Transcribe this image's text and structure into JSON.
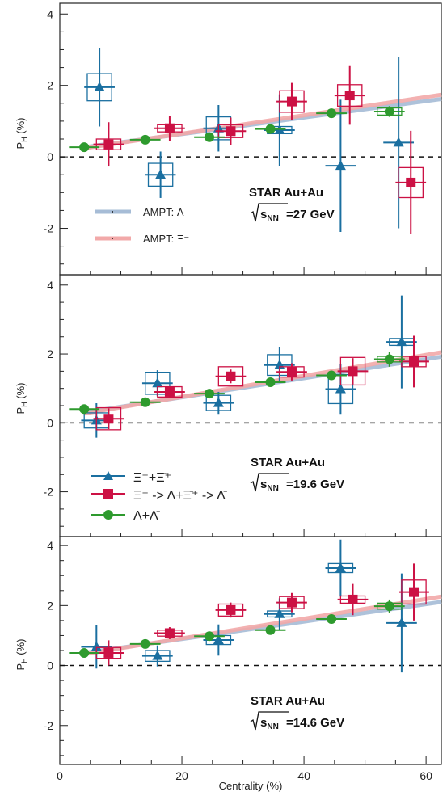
{
  "colors": {
    "xi": "#1a6fa0",
    "lambda_from_xi": "#cc1144",
    "lambda": "#2e9a2e",
    "ampt_lambda": "#a6bcd6",
    "ampt_xi": "#f2a9a9"
  },
  "chart_data": [
    {
      "type": "scatter",
      "panel": "top",
      "xlim": [
        0,
        62.5
      ],
      "ylim": [
        -3.3,
        4.3
      ],
      "yticks": [
        -2,
        0,
        2,
        4
      ],
      "ylabel": "P_H (%)",
      "annotation": {
        "line1": "STAR Au+Au",
        "energy_value": "=27 GeV"
      },
      "legend": {
        "entries": [
          "AMPT: Λ",
          "AMPT: Ξ⁻"
        ],
        "placement": "left"
      },
      "ampt": [
        {
          "name": "AMPT: Λ",
          "x": [
            4,
            62.5
          ],
          "y": [
            0.27,
            1.62
          ]
        },
        {
          "name": "AMPT: Ξ⁻",
          "x": [
            4,
            62.5
          ],
          "y": [
            0.24,
            1.74
          ]
        }
      ],
      "series": [
        {
          "key": "xi",
          "x": [
            6.5,
            16.5,
            26,
            36,
            46,
            55.5
          ],
          "y": [
            1.95,
            -0.5,
            0.8,
            0.75,
            -0.25,
            0.4
          ],
          "err": [
            1.1,
            0.65,
            0.65,
            1.0,
            1.85,
            2.4
          ],
          "xerr": [
            2.5,
            2.5,
            2.5,
            2.5,
            2.5,
            2.5
          ],
          "sys": [
            0.38,
            0.32,
            0.32,
            0.1,
            0.0,
            0.0
          ]
        },
        {
          "key": "lambda_from_xi",
          "x": [
            8,
            18,
            28,
            38,
            47.5,
            57.5
          ],
          "y": [
            0.35,
            0.8,
            0.72,
            1.55,
            1.72,
            -0.72
          ],
          "err": [
            0.62,
            0.35,
            0.38,
            0.52,
            0.82,
            1.45
          ],
          "xerr": [
            2.5,
            2.5,
            2.5,
            2.5,
            2.5,
            2.5
          ],
          "sys": [
            0.15,
            0.1,
            0.18,
            0.3,
            0.3,
            0.42
          ]
        },
        {
          "key": "lambda",
          "x": [
            4,
            14,
            24.5,
            34.5,
            44.5,
            54
          ],
          "y": [
            0.27,
            0.48,
            0.55,
            0.78,
            1.22,
            1.27
          ],
          "err": [
            0.05,
            0.05,
            0.07,
            0.08,
            0.1,
            0.15
          ],
          "xerr": [
            2.5,
            2.5,
            2.5,
            2.5,
            2.5,
            2.5
          ],
          "sys": [
            0.0,
            0.0,
            0.0,
            0.0,
            0.0,
            0.1
          ]
        }
      ]
    },
    {
      "type": "scatter",
      "panel": "middle",
      "xlim": [
        0,
        62.5
      ],
      "ylim": [
        -3.3,
        4.3
      ],
      "yticks": [
        -2,
        0,
        2,
        4
      ],
      "ylabel": "P_H (%)",
      "annotation": {
        "line1": "STAR Au+Au",
        "energy_value": "=19.6 GeV"
      },
      "legend": {
        "entries": [
          "Ξ⁻+Ξ̄⁺",
          "Ξ⁻ -> Λ+Ξ̄⁺ -> Λ̄",
          "Λ+Λ̄"
        ],
        "placement": "left"
      },
      "ampt": [
        {
          "name": "AMPT: Λ",
          "x": [
            4,
            62.5
          ],
          "y": [
            0.3,
            1.92
          ]
        },
        {
          "name": "AMPT: Ξ⁻",
          "x": [
            4,
            62.5
          ],
          "y": [
            0.27,
            2.05
          ]
        }
      ],
      "series": [
        {
          "key": "xi",
          "x": [
            6,
            16,
            26,
            36,
            46,
            56
          ],
          "y": [
            0.07,
            1.15,
            0.58,
            1.68,
            0.98,
            2.35
          ],
          "err": [
            0.5,
            0.38,
            0.32,
            0.52,
            0.72,
            1.35
          ],
          "xerr": [
            2.5,
            2.5,
            2.5,
            2.5,
            2.5,
            2.5
          ],
          "sys": [
            0.22,
            0.32,
            0.22,
            0.3,
            0.42,
            0.1
          ]
        },
        {
          "key": "lambda_from_xi",
          "x": [
            8,
            18,
            28,
            38,
            48,
            58
          ],
          "y": [
            0.12,
            0.9,
            1.35,
            1.48,
            1.5,
            1.78
          ],
          "err": [
            0.3,
            0.15,
            0.2,
            0.25,
            0.38,
            0.75
          ],
          "xerr": [
            2.5,
            2.5,
            2.5,
            2.5,
            2.5,
            2.5
          ],
          "sys": [
            0.32,
            0.15,
            0.28,
            0.15,
            0.4,
            0.15
          ]
        },
        {
          "key": "lambda",
          "x": [
            4,
            14,
            24.5,
            34.5,
            44.5,
            54
          ],
          "y": [
            0.4,
            0.6,
            0.85,
            1.18,
            1.38,
            1.85
          ],
          "err": [
            0.06,
            0.06,
            0.07,
            0.09,
            0.12,
            0.22
          ],
          "xerr": [
            2.5,
            2.5,
            2.5,
            2.5,
            2.5,
            2.5
          ],
          "sys": [
            0.0,
            0.0,
            0.0,
            0.0,
            0.0,
            0.08
          ]
        }
      ]
    },
    {
      "type": "scatter",
      "panel": "bottom",
      "xlim": [
        0,
        62.5
      ],
      "ylim": [
        -3.3,
        4.3
      ],
      "yticks": [
        -2,
        0,
        2,
        4
      ],
      "xticks": [
        0,
        20,
        40,
        60
      ],
      "xlabel": "Centrality (%)",
      "ylabel": "P_H (%)",
      "annotation": {
        "line1": "STAR Au+Au",
        "energy_value": "=14.6 GeV"
      },
      "ampt": [
        {
          "name": "AMPT: Λ",
          "x": [
            4,
            62.5
          ],
          "y": [
            0.42,
            2.12
          ]
        },
        {
          "name": "AMPT: Ξ⁻",
          "x": [
            4,
            62.5
          ],
          "y": [
            0.38,
            2.3
          ]
        }
      ],
      "series": [
        {
          "key": "xi",
          "x": [
            6,
            16,
            26,
            36,
            46,
            56
          ],
          "y": [
            0.62,
            0.32,
            0.85,
            1.72,
            3.25,
            1.42
          ],
          "err": [
            0.72,
            0.35,
            0.52,
            0.52,
            0.95,
            1.65
          ],
          "xerr": [
            2.5,
            2.5,
            2.5,
            2.5,
            2.5,
            2.5
          ],
          "sys": [
            0.0,
            0.18,
            0.15,
            0.1,
            0.15,
            0.0
          ]
        },
        {
          "key": "lambda_from_xi",
          "x": [
            8,
            18,
            28,
            38,
            48,
            58
          ],
          "y": [
            0.42,
            1.08,
            1.85,
            2.1,
            2.2,
            2.45
          ],
          "err": [
            0.42,
            0.2,
            0.25,
            0.32,
            0.52,
            0.95
          ],
          "xerr": [
            2.5,
            2.5,
            2.5,
            2.5,
            2.5,
            2.5
          ],
          "sys": [
            0.18,
            0.1,
            0.2,
            0.2,
            0.12,
            0.4
          ]
        },
        {
          "key": "lambda",
          "x": [
            4,
            14,
            24.5,
            34.5,
            44.5,
            54
          ],
          "y": [
            0.42,
            0.72,
            0.98,
            1.18,
            1.55,
            1.98
          ],
          "err": [
            0.06,
            0.06,
            0.07,
            0.1,
            0.12,
            0.22
          ],
          "xerr": [
            2.5,
            2.5,
            2.5,
            2.5,
            2.5,
            2.5
          ],
          "sys": [
            0.0,
            0.0,
            0.0,
            0.0,
            0.0,
            0.1
          ]
        }
      ]
    }
  ]
}
